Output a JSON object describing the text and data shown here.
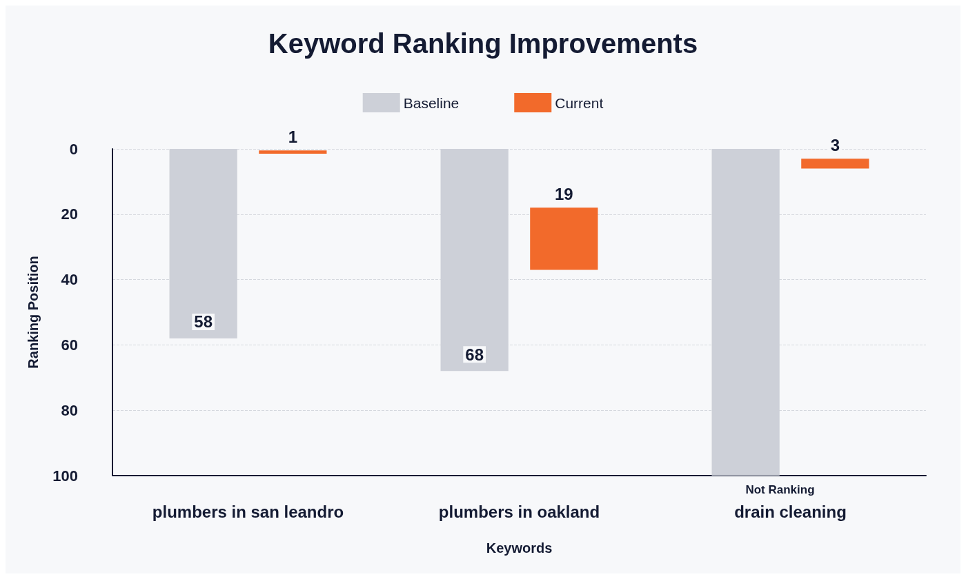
{
  "chart_data": {
    "type": "bar",
    "title": "Keyword Ranking Improvements",
    "xlabel": "Keywords",
    "ylabel": "Ranking Position",
    "categories": [
      "plumbers in san leandro",
      "plumbers in oakland",
      "drain cleaning"
    ],
    "series": [
      {
        "name": "Baseline",
        "color": "#cdd0d8",
        "values": [
          58,
          68,
          100
        ],
        "value_labels": [
          "58",
          "68",
          null
        ]
      },
      {
        "name": "Current",
        "color": "#f26a2b",
        "base": [
          0.5,
          18,
          3
        ],
        "values": [
          1,
          19,
          3
        ]
      }
    ],
    "ylim": [
      100,
      0
    ],
    "yticks": [
      0,
      20,
      40,
      60,
      80,
      100
    ],
    "grid": "y",
    "legend": "top",
    "data_labels": true,
    "annotations": [
      "Not Ranking"
    ]
  }
}
